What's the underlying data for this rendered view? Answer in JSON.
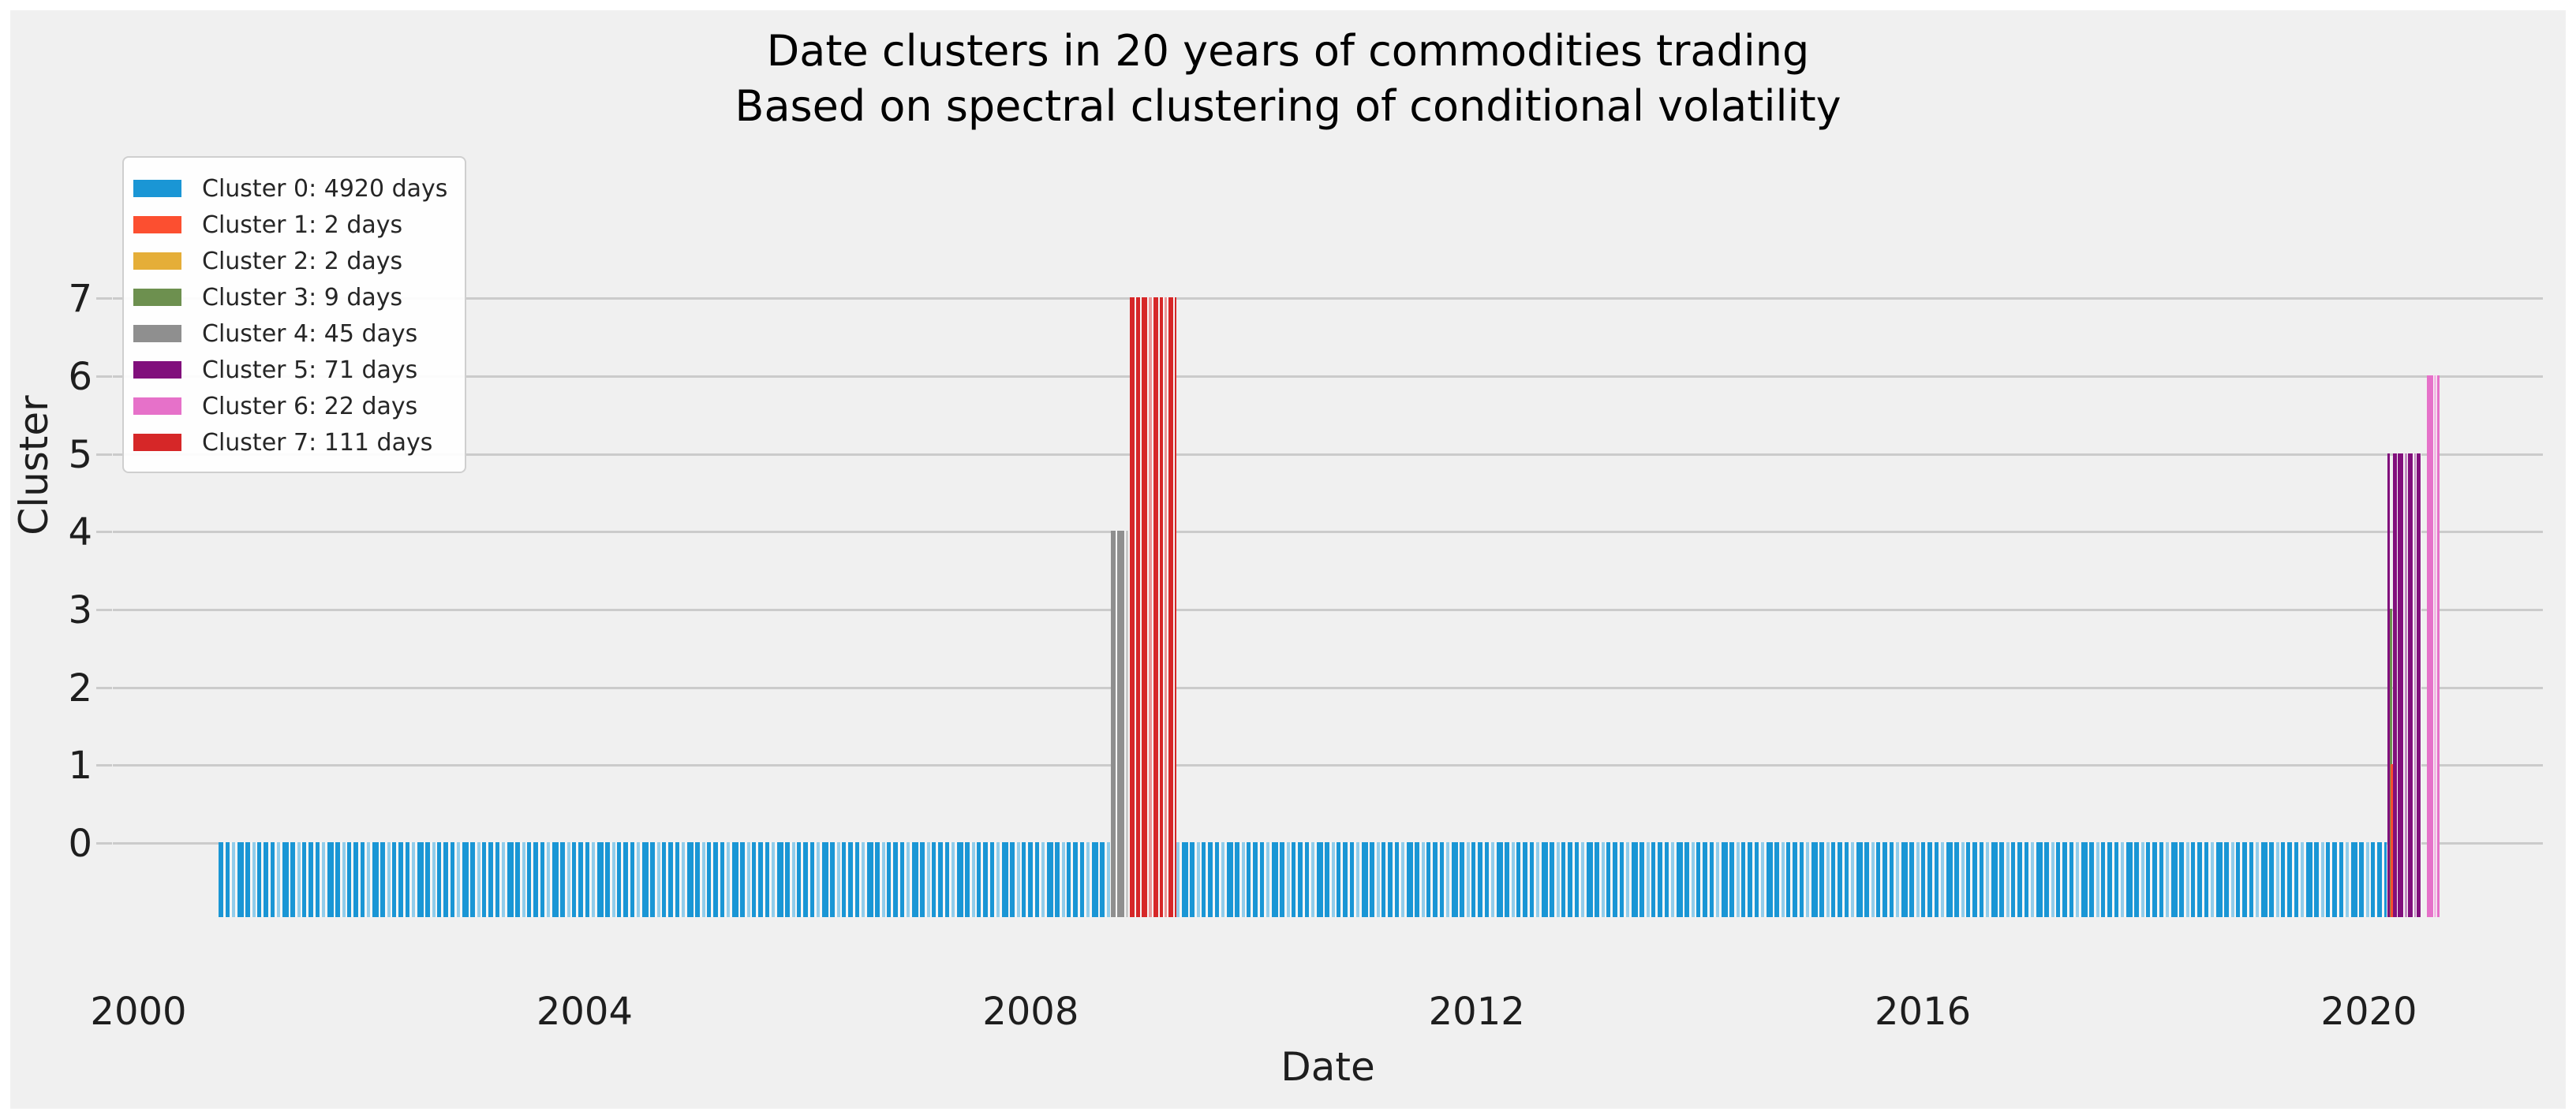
{
  "title": {
    "line1": "Date clusters in 20 years of commodities trading",
    "line2": "Based on spectral clustering of conditional volatility"
  },
  "axes": {
    "x_label": "Date",
    "y_label": "Cluster",
    "x_ticks": [
      "2000",
      "2004",
      "2008",
      "2012",
      "2016",
      "2020"
    ],
    "y_ticks": [
      "0",
      "1",
      "2",
      "3",
      "4",
      "5",
      "6",
      "7"
    ]
  },
  "legend": {
    "items": [
      {
        "label": "Cluster 0: 4920 days",
        "color": "#1a96d5"
      },
      {
        "label": "Cluster 1: 2 days",
        "color": "#fc4f30"
      },
      {
        "label": "Cluster 2: 2 days",
        "color": "#e5ae38"
      },
      {
        "label": "Cluster 3: 9 days",
        "color": "#6d904f"
      },
      {
        "label": "Cluster 4: 45 days",
        "color": "#8f8f8f"
      },
      {
        "label": "Cluster 5: 71 days",
        "color": "#810f7c"
      },
      {
        "label": "Cluster 6: 22 days",
        "color": "#e671c9"
      },
      {
        "label": "Cluster 7: 111 days",
        "color": "#d62728"
      }
    ]
  },
  "colors": {
    "figure_bg": "#f0f0f0",
    "page_bg": "#ffffff",
    "grid": "#cbcbcb",
    "text": "#1e1e1e",
    "gap": "#f6f6f6"
  },
  "chart_data": {
    "type": "bar",
    "title": "Date clusters in 20 years of commodities trading — Based on spectral clustering of conditional volatility",
    "xlabel": "Date",
    "ylabel": "Cluster",
    "x_axis": {
      "min": 1999.77,
      "max": 2021.56,
      "tick_years": [
        2000,
        2004,
        2008,
        2012,
        2016,
        2020
      ]
    },
    "y_axis": {
      "min": -1,
      "max": 7.5,
      "ticks": [
        0,
        1,
        2,
        3,
        4,
        5,
        6,
        7
      ]
    },
    "grid": "horizontal",
    "legend_position": "upper-left",
    "bar_bottom_value": -0.96,
    "clusters": [
      {
        "id": 0,
        "days": 4920
      },
      {
        "id": 1,
        "days": 2
      },
      {
        "id": 2,
        "days": 2
      },
      {
        "id": 3,
        "days": 9
      },
      {
        "id": 4,
        "days": 45
      },
      {
        "id": 5,
        "days": 71
      },
      {
        "id": 6,
        "days": 22
      },
      {
        "id": 7,
        "days": 111
      }
    ],
    "segments": [
      {
        "name": "cluster-0-main",
        "cluster": 0,
        "value": 0,
        "start_year": 2000.72,
        "end_year": 2020.16
      },
      {
        "name": "cluster-4-2008",
        "cluster": 4,
        "value": 4,
        "start_year": 2008.72,
        "end_year": 2008.89
      },
      {
        "name": "cluster-7-2008",
        "cluster": 7,
        "value": 7,
        "start_year": 2008.89,
        "end_year": 2009.31
      },
      {
        "name": "cluster-5-lead",
        "cluster": 5,
        "value": 5,
        "start_year": 2020.165,
        "end_year": 2020.185
      },
      {
        "name": "cluster-3-2020",
        "cluster": 3,
        "value": 3,
        "start_year": 2020.185,
        "end_year": 2020.21
      },
      {
        "name": "cluster-1-2020",
        "cluster": 1,
        "value": 1,
        "start_year": 2020.195,
        "end_year": 2020.215
      },
      {
        "name": "cluster-5-2020",
        "cluster": 5,
        "value": 5,
        "start_year": 2020.215,
        "end_year": 2020.47
      },
      {
        "name": "cluster-6-2020",
        "cluster": 6,
        "value": 6,
        "start_year": 2020.52,
        "end_year": 2020.63
      }
    ]
  }
}
